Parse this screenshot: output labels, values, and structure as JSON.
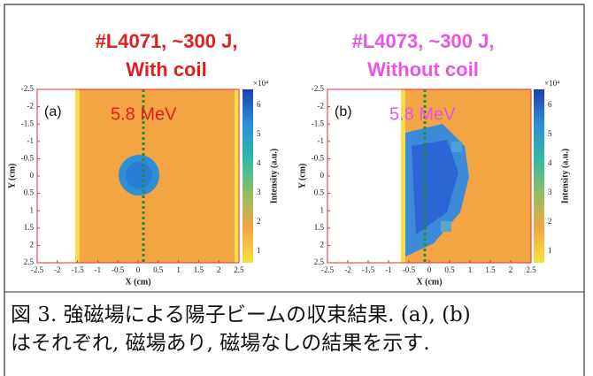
{
  "panels": [
    {
      "title_line1": "#L4071, ~300 J,",
      "title_line2": "With coil",
      "label": "(a)",
      "energy": "5.8 MeV",
      "xticks": [
        "-2.5",
        "-2",
        "-1.5",
        "-1",
        "-0.5",
        "0",
        "0.5",
        "1",
        "1.5",
        "2",
        "2.5"
      ],
      "yticks": [
        "-2.5",
        "-2",
        "-1.5",
        "-1",
        "-0.5",
        "0",
        "0.5",
        "1",
        "1.5",
        "2",
        "2.5"
      ],
      "xlabel": "X (cm)",
      "ylabel": "Y (cm)",
      "colorbar_ticks": [
        "1",
        "2",
        "3",
        "4",
        "5",
        "6"
      ],
      "colorbar_multiplier": "×10⁴",
      "colorbar_label": "Intensity (a.u.)"
    },
    {
      "title_line1": "#L4073, ~300 J,",
      "title_line2": "Without coil",
      "label": "(b)",
      "energy": "5.8 MeV",
      "xticks": [
        "-2.5",
        "-2",
        "-1.5",
        "-1",
        "-0.5",
        "0",
        "0.5",
        "1",
        "1.5",
        "2",
        "2.5"
      ],
      "yticks": [
        "-2.5",
        "-2",
        "-1.5",
        "-1",
        "-0.5",
        "0",
        "0.5",
        "1",
        "1.5",
        "2",
        "2.5"
      ],
      "xlabel": "X (cm)",
      "ylabel": "Y (cm)",
      "colorbar_ticks": [
        "1",
        "2",
        "3",
        "4",
        "5",
        "6"
      ],
      "colorbar_multiplier": "×10⁴",
      "colorbar_label": "Intensity (a.u.)"
    }
  ],
  "caption": {
    "line1": "図 3. 強磁場による陽子ビームの収束結果. (a), (b)",
    "line2": "はそれぞれ, 磁場あり, 磁場なしの結果を示す."
  }
}
